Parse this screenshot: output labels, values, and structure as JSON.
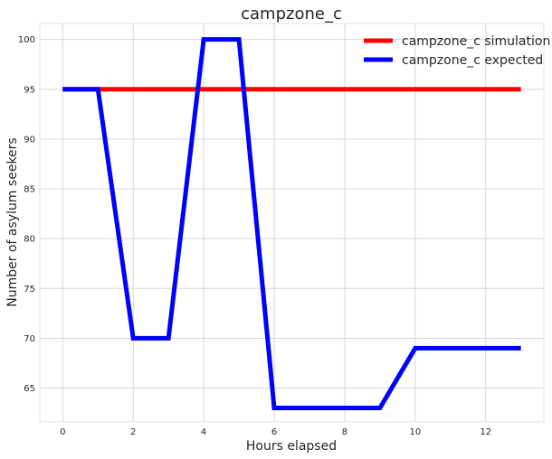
{
  "chart_data": {
    "type": "line",
    "title": "campzone_c",
    "xlabel": "Hours elapsed",
    "ylabel": "Number of asylum seekers",
    "xlim": [
      -0.65,
      13.65
    ],
    "ylim": [
      61.6,
      101.6
    ],
    "xticks": [
      0,
      2,
      4,
      6,
      8,
      10,
      12
    ],
    "yticks": [
      65,
      70,
      75,
      80,
      85,
      90,
      95,
      100
    ],
    "grid": true,
    "legend_position": "top-right",
    "x": [
      0,
      1,
      2,
      3,
      4,
      5,
      6,
      7,
      8,
      9,
      10,
      11,
      12,
      13
    ],
    "series": [
      {
        "name": "campzone_c simulation",
        "color": "#ff0000",
        "values": [
          95,
          95,
          95,
          95,
          95,
          95,
          95,
          95,
          95,
          95,
          95,
          95,
          95,
          95
        ]
      },
      {
        "name": "campzone_c expected",
        "color": "#0000ff",
        "values": [
          95,
          95,
          70,
          70,
          100,
          100,
          63,
          63,
          63,
          63,
          69,
          69,
          69,
          69
        ]
      }
    ]
  }
}
